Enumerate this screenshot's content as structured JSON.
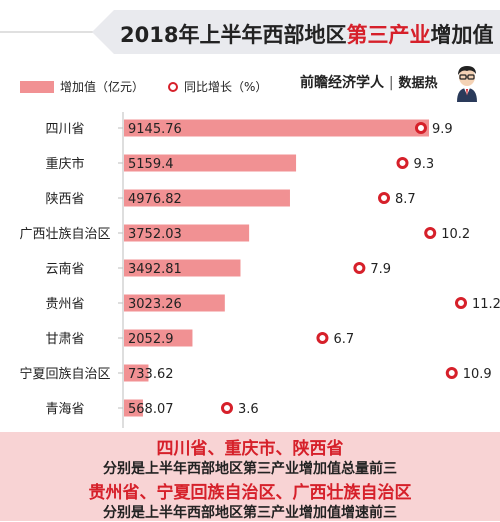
{
  "title": {
    "part1": "2018年上半年西部地区",
    "highlight": "第三产业",
    "part2": "增加值"
  },
  "legend": {
    "bar_label": "增加值（亿元）",
    "dot_label": "同比增长（%）"
  },
  "brand": {
    "name": "前瞻经济学人",
    "separator": "|",
    "sub": "数据热"
  },
  "colors": {
    "bar": "#f19193",
    "dot": "#d6202a",
    "axis": "#bdbdbd",
    "footer_bg": "#f8d3d4"
  },
  "chart_data": {
    "type": "bar",
    "orientation": "horizontal",
    "categories": [
      "四川省",
      "重庆市",
      "陕西省",
      "广西壮族自治区",
      "云南省",
      "贵州省",
      "甘肃省",
      "宁夏回族自治区",
      "青海省"
    ],
    "series": [
      {
        "name": "增加值（亿元）",
        "type": "bar",
        "values": [
          9145.76,
          5159.4,
          4976.82,
          3752.03,
          3492.81,
          3023.26,
          2052.9,
          733.62,
          568.07
        ]
      },
      {
        "name": "同比增长（%）",
        "type": "dot",
        "values": [
          9.9,
          9.3,
          8.7,
          10.2,
          7.9,
          11.2,
          6.7,
          10.9,
          3.6
        ]
      }
    ],
    "value_labels": [
      "9145.76",
      "5159.4",
      "4976.82",
      "3752.03",
      "3492.81",
      "3023.26",
      "2052.9",
      "733.62",
      "568.07"
    ],
    "growth_labels": [
      "9.9",
      "9.3",
      "8.7",
      "10.2",
      "7.9",
      "11.2",
      "6.7",
      "10.9",
      "3.6"
    ],
    "grid": false
  },
  "footer": {
    "line1": "四川省、重庆市、陕西省",
    "line2": "分别是上半年西部地区第三产业增加值总量前三",
    "line3": "贵州省、宁夏回族自治区、广西壮族自治区",
    "line4": "分别是上半年西部地区第三产业增加值增速前三"
  }
}
